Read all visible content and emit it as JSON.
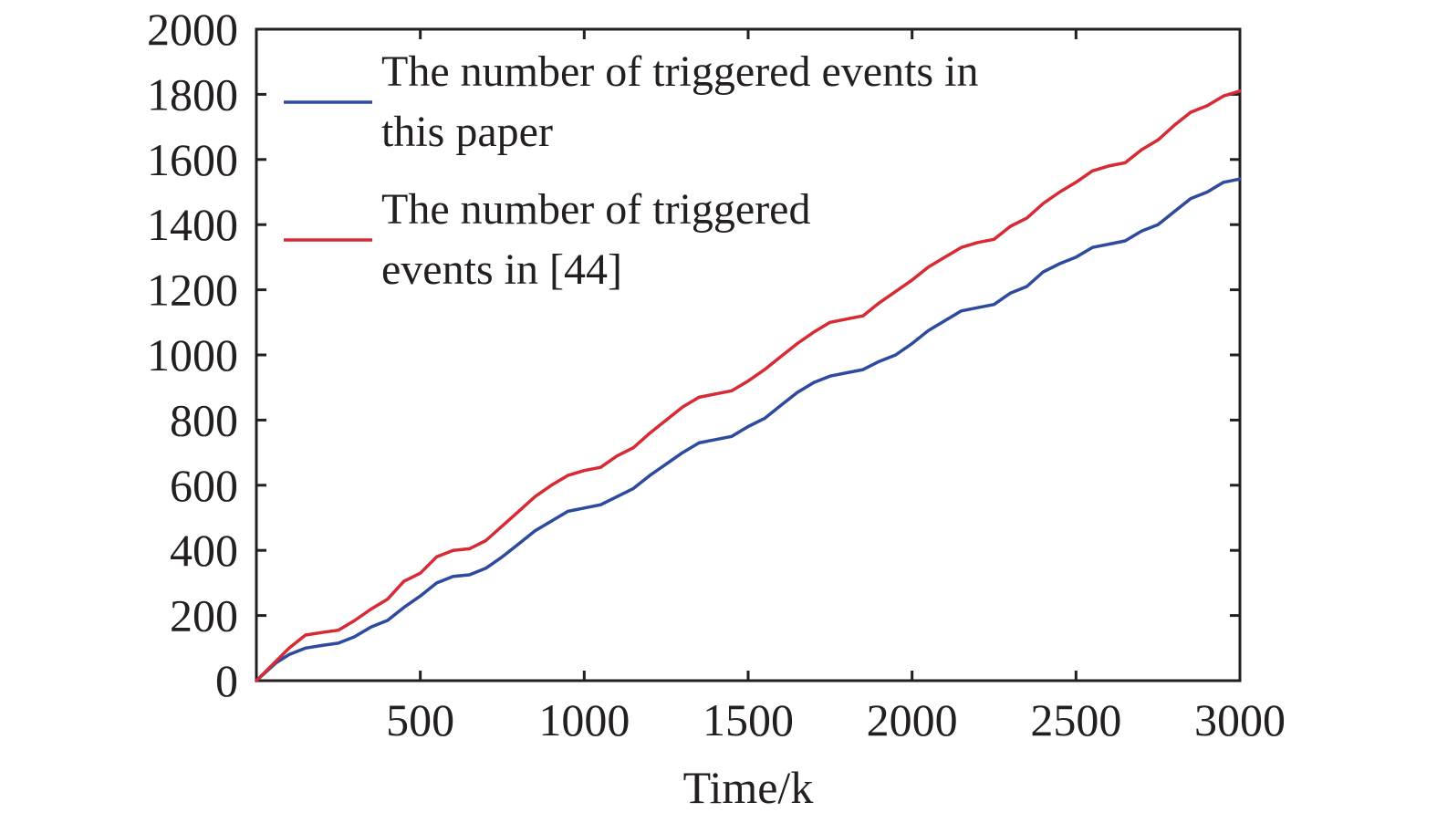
{
  "chart_data": {
    "type": "line",
    "title": "",
    "xlabel": "Time/k",
    "ylabel": "",
    "xlim": [
      0,
      3000
    ],
    "ylim": [
      0,
      2000
    ],
    "x_ticks": [
      500,
      1000,
      1500,
      2000,
      2500,
      3000
    ],
    "x_tick_labels": [
      "500",
      "1000",
      "1500",
      "2000",
      "2500",
      "3000"
    ],
    "y_ticks": [
      0,
      200,
      400,
      600,
      800,
      1000,
      1200,
      1400,
      1600,
      1800,
      2000
    ],
    "y_tick_labels": [
      "0",
      "200",
      "400",
      "600",
      "800",
      "1000",
      "1200",
      "1400",
      "1600",
      "1800",
      "2000"
    ],
    "grid": false,
    "legend_position": "top-left",
    "series": [
      {
        "name_lines": [
          "The number of triggered events in",
          "this paper"
        ],
        "color": "#2e4a9c",
        "x": [
          0,
          60,
          100,
          150,
          200,
          250,
          300,
          350,
          400,
          450,
          500,
          550,
          600,
          650,
          700,
          750,
          800,
          850,
          900,
          950,
          1000,
          1050,
          1100,
          1150,
          1200,
          1250,
          1300,
          1350,
          1400,
          1450,
          1500,
          1550,
          1600,
          1650,
          1700,
          1750,
          1800,
          1850,
          1900,
          1950,
          2000,
          2050,
          2100,
          2150,
          2200,
          2250,
          2300,
          2350,
          2400,
          2450,
          2500,
          2550,
          2600,
          2650,
          2700,
          2750,
          2800,
          2850,
          2900,
          2950,
          3000
        ],
        "y": [
          0,
          55,
          80,
          100,
          108,
          115,
          135,
          165,
          185,
          225,
          260,
          300,
          320,
          325,
          345,
          380,
          420,
          460,
          490,
          520,
          530,
          540,
          565,
          590,
          630,
          665,
          700,
          730,
          740,
          750,
          780,
          805,
          845,
          885,
          915,
          935,
          945,
          955,
          980,
          1000,
          1035,
          1075,
          1105,
          1135,
          1145,
          1155,
          1190,
          1210,
          1255,
          1280,
          1300,
          1330,
          1340,
          1350,
          1380,
          1400,
          1440,
          1480,
          1500,
          1530,
          1540
        ]
      },
      {
        "name_lines": [
          "The number of triggered",
          "events in [44]"
        ],
        "color": "#d62a34",
        "x": [
          0,
          60,
          100,
          150,
          200,
          250,
          300,
          350,
          400,
          450,
          500,
          550,
          600,
          650,
          700,
          750,
          800,
          850,
          900,
          950,
          1000,
          1050,
          1100,
          1150,
          1200,
          1250,
          1300,
          1350,
          1400,
          1450,
          1500,
          1550,
          1600,
          1650,
          1700,
          1750,
          1800,
          1850,
          1900,
          1950,
          2000,
          2050,
          2100,
          2150,
          2200,
          2250,
          2300,
          2350,
          2400,
          2450,
          2500,
          2550,
          2600,
          2650,
          2700,
          2750,
          2800,
          2850,
          2900,
          2950,
          3000
        ],
        "y": [
          0,
          60,
          100,
          140,
          148,
          155,
          185,
          220,
          250,
          305,
          330,
          380,
          400,
          405,
          430,
          475,
          520,
          565,
          600,
          630,
          645,
          655,
          690,
          715,
          760,
          800,
          840,
          870,
          880,
          890,
          920,
          955,
          995,
          1035,
          1070,
          1100,
          1110,
          1120,
          1160,
          1195,
          1230,
          1270,
          1300,
          1330,
          1345,
          1355,
          1395,
          1420,
          1465,
          1500,
          1530,
          1565,
          1580,
          1590,
          1630,
          1660,
          1705,
          1745,
          1765,
          1795,
          1810
        ]
      }
    ]
  }
}
